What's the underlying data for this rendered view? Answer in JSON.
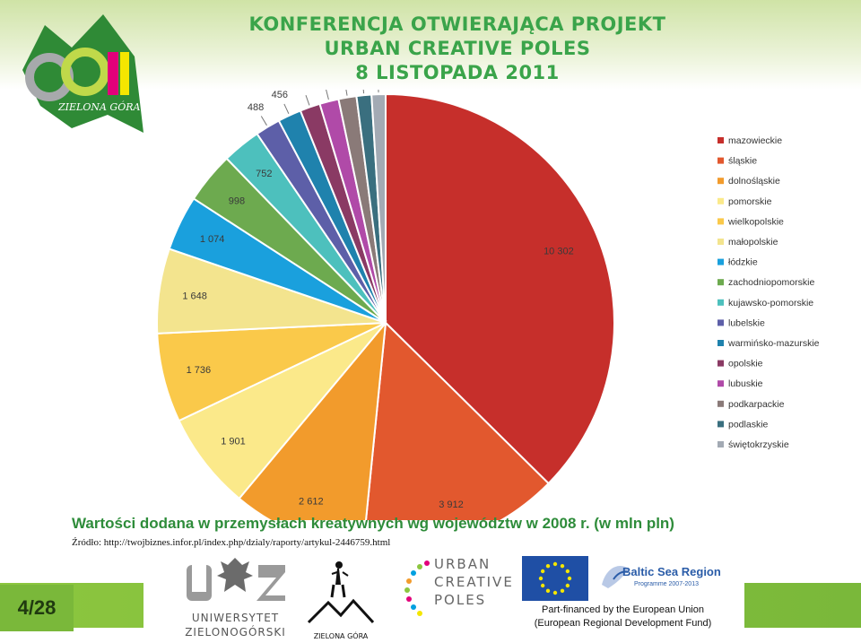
{
  "header": {
    "title_line1": "KONFERENCJA OTWIERAJĄCA PROJEKT",
    "title_line2": "URBAN CREATIVE POLES",
    "title_line3": "8 LISTOPADA 2011",
    "logo_caption": "ZIELONA GÓRA"
  },
  "caption": {
    "title": "Wartości dodana w przemysłach kreatywnych wg województw  w 2008 r. (w mln pln)",
    "source": "Źródło: http://twojbiznes.infor.pl/index.php/dzialy/raporty/artykul-2446759.html"
  },
  "footer": {
    "page": "4/28",
    "uz_line1": "UNIWERSYTET",
    "uz_line2": "ZIELONOGÓRSKI",
    "zg_caption": "ZIELONA GÓRA",
    "ucp_line1": "URBAN",
    "ucp_line2": "CREATIVE",
    "ucp_line3": "POLES",
    "bsr_title": "Baltic Sea Region",
    "bsr_programme": "Programme 2007-2013",
    "eu_line1": "Part-financed by the European Union",
    "eu_line2": "(European Regional Development Fund)"
  },
  "chart_data": {
    "type": "pie",
    "legend_position": "right",
    "slices": [
      {
        "label": "mazowieckie",
        "value": 10302,
        "display": "10 302",
        "color": "#c62f2b"
      },
      {
        "label": "śląskie",
        "value": 3912,
        "display": "3 912",
        "color": "#e2582e"
      },
      {
        "label": "dolnośląskie",
        "value": 2612,
        "display": "2 612",
        "color": "#f29b2c"
      },
      {
        "label": "pomorskie",
        "value": 1901,
        "display": "1 901",
        "color": "#fbe98a"
      },
      {
        "label": "wielkopolskie",
        "value": 1736,
        "display": "1 736",
        "color": "#fac94a"
      },
      {
        "label": "małopolskie",
        "value": 1648,
        "display": "1 648",
        "color": "#f3e48e"
      },
      {
        "label": "łódzkie",
        "value": 1074,
        "display": "1 074",
        "color": "#1aa0dd"
      },
      {
        "label": "zachodniopomorskie",
        "value": 998,
        "display": "998",
        "color": "#6daa4f"
      },
      {
        "label": "kujawsko-pomorskie",
        "value": 752,
        "display": "752",
        "color": "#4dc0bd"
      },
      {
        "label": "lubelskie",
        "value": 488,
        "display": "488",
        "color": "#5d5fa8"
      },
      {
        "label": "warmińsko-mazurskie",
        "value": 456,
        "display": "456",
        "color": "#1f82ad"
      },
      {
        "label": "opolskie",
        "value": 394,
        "display": "394",
        "color": "#8a3a64"
      },
      {
        "label": "lubuskie",
        "value": 371,
        "display": "371",
        "color": "#b04aa8"
      },
      {
        "label": "podkarpackie",
        "value": 349,
        "display": "349",
        "color": "#8a7a78"
      },
      {
        "label": "podlaskie",
        "value": 290,
        "display": "290",
        "color": "#3a6f7f"
      },
      {
        "label": "świętokrzyskie",
        "value": 272,
        "display": "272",
        "color": "#a3aab4"
      }
    ]
  }
}
